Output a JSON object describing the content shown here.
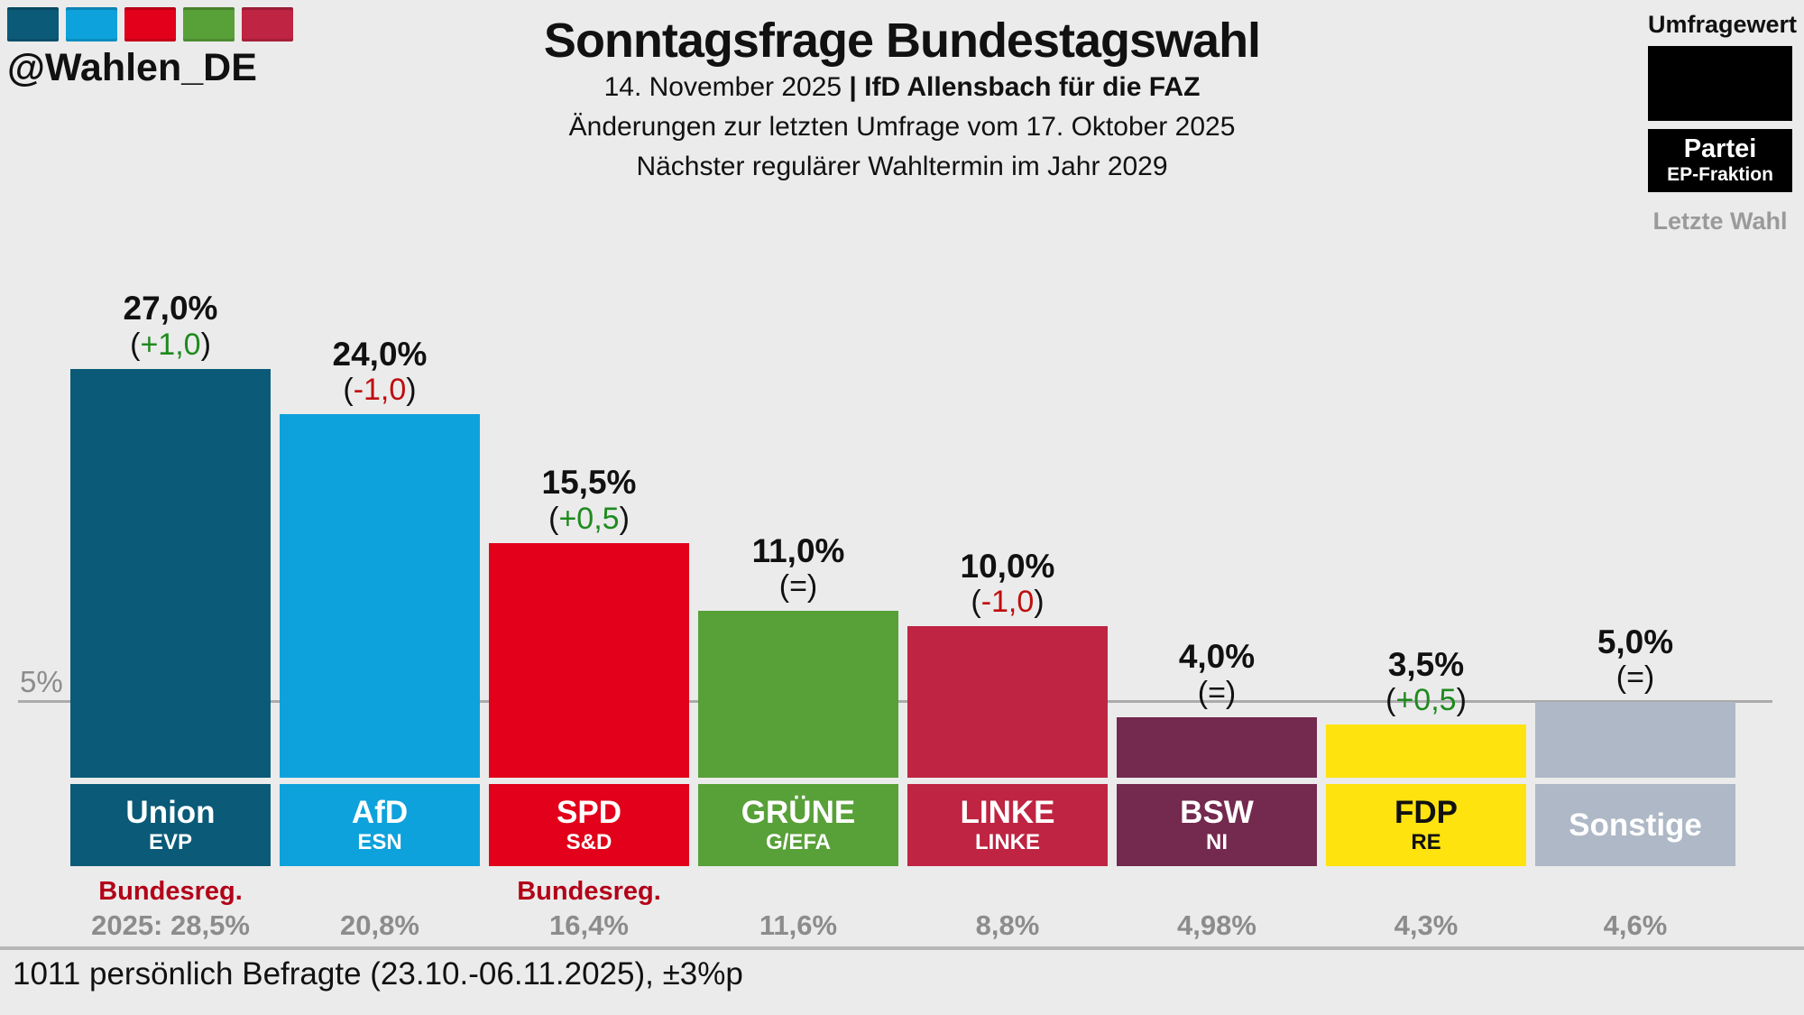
{
  "header": {
    "account": "@Wahlen_DE",
    "logo_colors": [
      "#0a5a78",
      "#0ea2dc",
      "#e2001a",
      "#58a038",
      "#bf2442"
    ],
    "title": "Sonntagsfrage Bundestagswahl",
    "subtitle_prefix": "14. November 2025 ",
    "subtitle_source": "| IfD Allensbach für die FAZ",
    "subtitle_line2": "Änderungen zur letzten Umfrage vom 17. Oktober 2025",
    "subtitle_line3": "Nächster regulärer Wahltermin im Jahr 2029"
  },
  "legend": {
    "poll_label": "Umfragewert",
    "party_label": "Partei",
    "faction_label": "EP-Fraktion",
    "last_election_label": "Letzte Wahl"
  },
  "axis": {
    "five_percent_label": "5%"
  },
  "footer": {
    "note": "1011 persönlich Befragte (23.10.-06.11.2025), ±3%p"
  },
  "chart_data": {
    "type": "bar",
    "title": "Sonntagsfrage Bundestagswahl",
    "xlabel": "",
    "ylabel": "Umfragewert (%)",
    "ylim": [
      0,
      27
    ],
    "grid": "single horizontal threshold line at 5%",
    "legend_position": "top-right",
    "categories": [
      "Union",
      "AfD",
      "SPD",
      "GRÜNE",
      "LINKE",
      "BSW",
      "FDP",
      "Sonstige"
    ],
    "values": [
      27.0,
      24.0,
      15.5,
      11.0,
      10.0,
      4.0,
      3.5,
      5.0
    ],
    "changes": [
      "+1,0",
      "-1,0",
      "+0,5",
      "=",
      "-1,0",
      "=",
      "+0,5",
      "="
    ],
    "last_election_values": [
      "2025: 28,5%",
      "20,8%",
      "16,4%",
      "11,6%",
      "8,8%",
      "4,98%",
      "4,3%",
      "4,6%"
    ],
    "parties": [
      {
        "name": "Union",
        "faction": "EVP",
        "value": 27.0,
        "value_label": "27,0%",
        "change": "+1,0",
        "change_dir": "up",
        "color": "#0a5a78",
        "text_color": "#ffffff",
        "note": "Bundesreg.",
        "last_election": "2025: 28,5%"
      },
      {
        "name": "AfD",
        "faction": "ESN",
        "value": 24.0,
        "value_label": "24,0%",
        "change": "-1,0",
        "change_dir": "down",
        "color": "#0ea2dc",
        "text_color": "#ffffff",
        "note": "",
        "last_election": "20,8%"
      },
      {
        "name": "SPD",
        "faction": "S&D",
        "value": 15.5,
        "value_label": "15,5%",
        "change": "+0,5",
        "change_dir": "up",
        "color": "#e2001a",
        "text_color": "#ffffff",
        "note": "Bundesreg.",
        "last_election": "16,4%"
      },
      {
        "name": "GRÜNE",
        "faction": "G/EFA",
        "value": 11.0,
        "value_label": "11,0%",
        "change": "=",
        "change_dir": "same",
        "color": "#58a038",
        "text_color": "#ffffff",
        "note": "",
        "last_election": "11,6%"
      },
      {
        "name": "LINKE",
        "faction": "LINKE",
        "value": 10.0,
        "value_label": "10,0%",
        "change": "-1,0",
        "change_dir": "down",
        "color": "#bf2442",
        "text_color": "#ffffff",
        "note": "",
        "last_election": "8,8%"
      },
      {
        "name": "BSW",
        "faction": "NI",
        "value": 4.0,
        "value_label": "4,0%",
        "change": "=",
        "change_dir": "same",
        "color": "#74294f",
        "text_color": "#ffffff",
        "note": "",
        "last_election": "4,98%"
      },
      {
        "name": "FDP",
        "faction": "RE",
        "value": 3.5,
        "value_label": "3,5%",
        "change": "+0,5",
        "change_dir": "up",
        "color": "#ffe30e",
        "text_color": "#111111",
        "note": "",
        "last_election": "4,3%"
      },
      {
        "name": "Sonstige",
        "faction": "",
        "value": 5.0,
        "value_label": "5,0%",
        "change": "=",
        "change_dir": "same",
        "color": "#aeb8c6",
        "text_color": "#ffffff",
        "note": "",
        "last_election": "4,6%"
      }
    ],
    "colors": {
      "positive": "#1e8a1e",
      "negative": "#c00d0d",
      "neutral": "#111111",
      "note_red": "#b30018",
      "muted_gray": "#8c8c8c"
    }
  }
}
